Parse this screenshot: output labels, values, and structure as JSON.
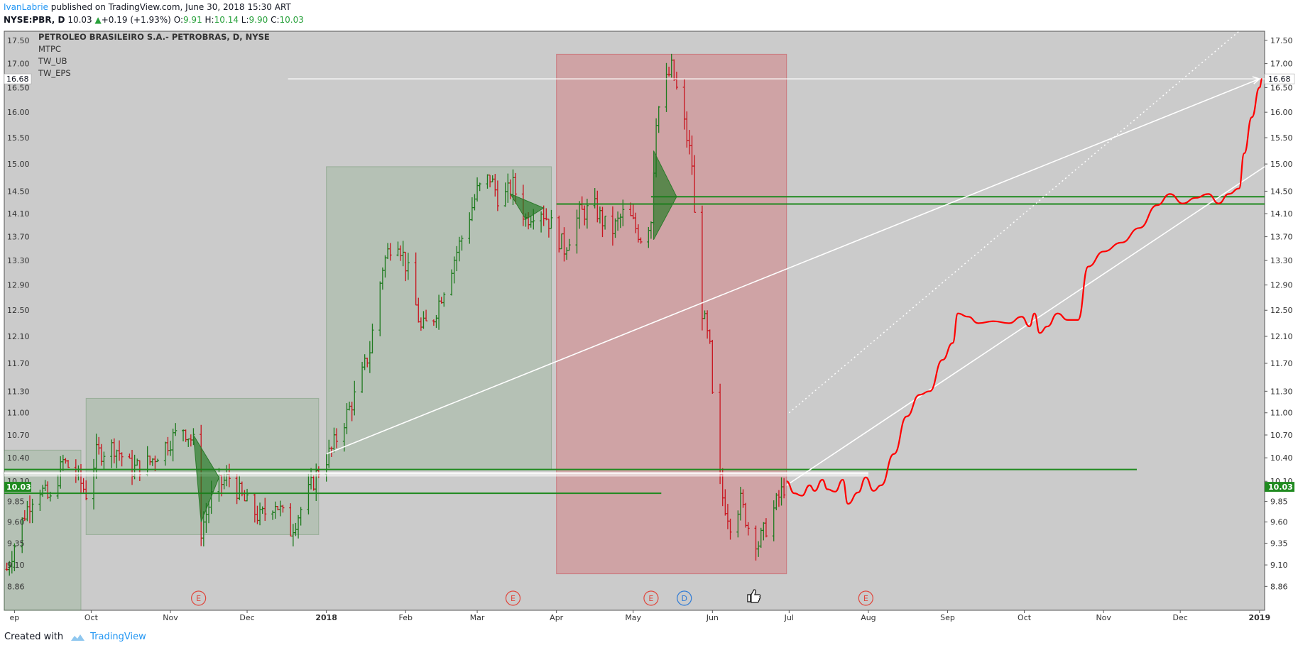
{
  "header": {
    "user": "IvanLabrie",
    "published": "published on TradingView.com, June 30, 2018 15:30 ART",
    "symbol": "NYSE:PBR, D",
    "last": "10.03",
    "change_arrow": "▲",
    "change": "+0.19 (+1.93%)",
    "o_label": "O:",
    "o": "9.91",
    "h_label": "H:",
    "h": "10.14",
    "l_label": "L:",
    "l": "9.90",
    "c_label": "C:",
    "c": "10.03"
  },
  "legend": {
    "title": "PETROLEO BRASILEIRO S.A.- PETROBRAS, D, NYSE",
    "studies": [
      "MTPC",
      "TW_UB",
      "TW_EPS"
    ]
  },
  "price_tags": {
    "target": "16.68",
    "current": "10.03"
  },
  "footer": {
    "created_with": "Created with",
    "brand": "TradingView"
  },
  "colors": {
    "background": "#cbcbcb",
    "up_bar": "#1e7a1e",
    "down_bar": "#c8141e",
    "projection": "#ff0000",
    "green_level": "#1f8a1f",
    "events": "#e0463c",
    "dividend": "#2e7bd6",
    "accent": "#2196f3"
  },
  "chart_data": {
    "type": "ohlc-bars",
    "ylim": [
      8.6,
      17.7
    ],
    "xlim": [
      "2017-08-28",
      "2019-01-03"
    ],
    "y_ticks": [
      "17.50",
      "17.00",
      "16.50",
      "16.00",
      "15.50",
      "15.00",
      "14.50",
      "14.10",
      "13.70",
      "13.30",
      "12.90",
      "12.50",
      "12.10",
      "11.70",
      "11.30",
      "11.00",
      "10.70",
      "10.40",
      "10.10",
      "9.85",
      "9.60",
      "9.35",
      "9.10",
      "8.86"
    ],
    "x_ticks": [
      {
        "date": "2017-09-01",
        "label": "ep"
      },
      {
        "date": "2017-10-01",
        "label": "Oct"
      },
      {
        "date": "2017-11-01",
        "label": "Nov"
      },
      {
        "date": "2017-12-01",
        "label": "Dec"
      },
      {
        "date": "2018-01-01",
        "label": "2018"
      },
      {
        "date": "2018-02-01",
        "label": "Feb"
      },
      {
        "date": "2018-03-01",
        "label": "Mar"
      },
      {
        "date": "2018-04-01",
        "label": "Apr"
      },
      {
        "date": "2018-05-01",
        "label": "May"
      },
      {
        "date": "2018-06-01",
        "label": "Jun"
      },
      {
        "date": "2018-07-01",
        "label": "Jul"
      },
      {
        "date": "2018-08-01",
        "label": "Aug"
      },
      {
        "date": "2018-09-01",
        "label": "Sep"
      },
      {
        "date": "2018-10-01",
        "label": "Oct"
      },
      {
        "date": "2018-11-01",
        "label": "Nov"
      },
      {
        "date": "2018-12-01",
        "label": "Dec"
      },
      {
        "date": "2019-01-01",
        "label": "2019"
      }
    ],
    "price_path": [
      [
        "2017-08-29",
        9.05
      ],
      [
        "2017-09-05",
        9.7
      ],
      [
        "2017-09-10",
        10.05
      ],
      [
        "2017-09-15",
        9.85
      ],
      [
        "2017-09-20",
        10.35
      ],
      [
        "2017-09-25",
        10.2
      ],
      [
        "2017-09-29",
        9.95
      ],
      [
        "2017-10-03",
        10.45
      ],
      [
        "2017-10-10",
        10.55
      ],
      [
        "2017-10-17",
        10.25
      ],
      [
        "2017-10-24",
        10.35
      ],
      [
        "2017-10-31",
        10.6
      ],
      [
        "2017-11-06",
        10.8
      ],
      [
        "2017-11-10",
        10.6
      ],
      [
        "2017-11-13",
        9.5
      ],
      [
        "2017-11-18",
        10.0
      ],
      [
        "2017-11-24",
        10.15
      ],
      [
        "2017-11-30",
        9.85
      ],
      [
        "2017-12-06",
        9.65
      ],
      [
        "2017-12-12",
        9.85
      ],
      [
        "2017-12-18",
        9.5
      ],
      [
        "2017-12-22",
        9.75
      ],
      [
        "2017-12-29",
        10.25
      ],
      [
        "2018-01-03",
        10.5
      ],
      [
        "2018-01-08",
        10.9
      ],
      [
        "2018-01-13",
        11.3
      ],
      [
        "2018-01-18",
        11.9
      ],
      [
        "2018-01-23",
        13.2
      ],
      [
        "2018-01-28",
        13.8
      ],
      [
        "2018-02-02",
        13.1
      ],
      [
        "2018-02-07",
        12.2
      ],
      [
        "2018-02-12",
        12.4
      ],
      [
        "2018-02-18",
        13.1
      ],
      [
        "2018-02-24",
        13.8
      ],
      [
        "2018-03-01",
        14.5
      ],
      [
        "2018-03-06",
        14.75
      ],
      [
        "2018-03-10",
        14.3
      ],
      [
        "2018-03-15",
        14.6
      ],
      [
        "2018-03-20",
        14.0
      ],
      [
        "2018-03-25",
        14.25
      ],
      [
        "2018-03-30",
        13.9
      ],
      [
        "2018-04-04",
        13.5
      ],
      [
        "2018-04-10",
        14.1
      ],
      [
        "2018-04-16",
        14.2
      ],
      [
        "2018-04-22",
        13.75
      ],
      [
        "2018-04-28",
        14.15
      ],
      [
        "2018-05-04",
        13.7
      ],
      [
        "2018-05-08",
        14.0
      ],
      [
        "2018-05-10",
        15.9
      ],
      [
        "2018-05-13",
        16.5
      ],
      [
        "2018-05-16",
        16.9
      ],
      [
        "2018-05-20",
        16.0
      ],
      [
        "2018-05-24",
        15.0
      ],
      [
        "2018-05-26",
        13.1
      ],
      [
        "2018-05-28",
        12.5
      ],
      [
        "2018-05-31",
        11.9
      ],
      [
        "2018-06-02",
        10.5
      ],
      [
        "2018-06-05",
        9.9
      ],
      [
        "2018-06-08",
        9.6
      ],
      [
        "2018-06-12",
        9.85
      ],
      [
        "2018-06-15",
        9.55
      ],
      [
        "2018-06-19",
        9.35
      ],
      [
        "2018-06-23",
        9.6
      ],
      [
        "2018-06-27",
        9.9
      ],
      [
        "2018-06-29",
        10.03
      ]
    ],
    "projection_path": [
      [
        "2018-06-30",
        10.1
      ],
      [
        "2018-07-03",
        9.95
      ],
      [
        "2018-07-06",
        9.92
      ],
      [
        "2018-07-09",
        10.05
      ],
      [
        "2018-07-11",
        9.98
      ],
      [
        "2018-07-14",
        10.12
      ],
      [
        "2018-07-16",
        10.0
      ],
      [
        "2018-07-19",
        9.97
      ],
      [
        "2018-07-22",
        10.12
      ],
      [
        "2018-07-24",
        9.82
      ],
      [
        "2018-07-28",
        9.96
      ],
      [
        "2018-07-31",
        10.15
      ],
      [
        "2018-08-03",
        9.98
      ],
      [
        "2018-08-06",
        10.05
      ],
      [
        "2018-08-11",
        10.45
      ],
      [
        "2018-08-16",
        10.95
      ],
      [
        "2018-08-21",
        11.25
      ],
      [
        "2018-08-25",
        11.3
      ],
      [
        "2018-08-30",
        11.75
      ],
      [
        "2018-09-03",
        12.0
      ],
      [
        "2018-09-05",
        12.45
      ],
      [
        "2018-09-09",
        12.4
      ],
      [
        "2018-09-13",
        12.3
      ],
      [
        "2018-09-19",
        12.33
      ],
      [
        "2018-09-25",
        12.3
      ],
      [
        "2018-09-30",
        12.4
      ],
      [
        "2018-10-03",
        12.25
      ],
      [
        "2018-10-05",
        12.45
      ],
      [
        "2018-10-07",
        12.15
      ],
      [
        "2018-10-10",
        12.25
      ],
      [
        "2018-10-14",
        12.45
      ],
      [
        "2018-10-18",
        12.35
      ],
      [
        "2018-10-22",
        12.35
      ],
      [
        "2018-10-26",
        13.2
      ],
      [
        "2018-11-01",
        13.45
      ],
      [
        "2018-11-08",
        13.6
      ],
      [
        "2018-11-15",
        13.85
      ],
      [
        "2018-11-22",
        14.25
      ],
      [
        "2018-11-27",
        14.45
      ],
      [
        "2018-12-02",
        14.28
      ],
      [
        "2018-12-07",
        14.38
      ],
      [
        "2018-12-12",
        14.45
      ],
      [
        "2018-12-16",
        14.28
      ],
      [
        "2018-12-20",
        14.45
      ],
      [
        "2018-12-24",
        14.55
      ],
      [
        "2018-12-26",
        15.2
      ],
      [
        "2018-12-29",
        15.9
      ],
      [
        "2019-01-01",
        16.5
      ],
      [
        "2019-01-02",
        16.68
      ]
    ],
    "range_boxes": [
      {
        "from": "2017-08-28",
        "to": "2017-09-27",
        "low": 8.6,
        "high": 10.5,
        "kind": "accumulation"
      },
      {
        "from": "2017-09-29",
        "to": "2017-12-29",
        "low": 9.45,
        "high": 11.2,
        "kind": "accumulation"
      },
      {
        "from": "2018-01-01",
        "to": "2018-03-30",
        "low": 10.25,
        "high": 14.95,
        "kind": "accumulation"
      },
      {
        "from": "2018-04-01",
        "to": "2018-06-30",
        "low": 9.0,
        "high": 17.2,
        "kind": "distribution"
      }
    ],
    "horizontal_levels": [
      {
        "from": "2017-08-28",
        "to": "2018-05-12",
        "price": 9.95,
        "color": "green"
      },
      {
        "from": "2017-08-28",
        "to": "2018-11-14",
        "price": 10.25,
        "color": "green"
      },
      {
        "from": "2017-08-28",
        "to": "2018-08-01",
        "price": 10.2,
        "color": "white"
      },
      {
        "from": "2018-05-08",
        "to": "2019-01-03",
        "price": 14.4,
        "color": "green"
      },
      {
        "from": "2018-04-01",
        "to": "2019-01-03",
        "price": 14.27,
        "color": "green"
      },
      {
        "from": "2017-12-17",
        "to": "2019-01-03",
        "price": 16.68,
        "color": "white"
      }
    ],
    "trend_lines": [
      {
        "from": [
          "2018-01-01",
          10.45
        ],
        "to": [
          "2019-01-01",
          16.68
        ],
        "style": "solid",
        "arrow": true
      },
      {
        "from": [
          "2018-06-30",
          10.05
        ],
        "to": [
          "2019-01-03",
          14.95
        ],
        "style": "solid"
      },
      {
        "from": [
          "2018-07-01",
          11.0
        ],
        "to": [
          "2018-12-24",
          17.7
        ],
        "style": "dotted"
      }
    ],
    "triangles": [
      {
        "points": [
          [
            "2017-11-10",
            10.7
          ],
          [
            "2017-11-13",
            9.6
          ],
          [
            "2017-11-20",
            10.15
          ]
        ]
      },
      {
        "points": [
          [
            "2018-03-14",
            14.45
          ],
          [
            "2018-03-20",
            14.0
          ],
          [
            "2018-03-27",
            14.2
          ]
        ]
      },
      {
        "points": [
          [
            "2018-05-09",
            15.25
          ],
          [
            "2018-05-09",
            13.65
          ],
          [
            "2018-05-18",
            14.4
          ]
        ]
      }
    ],
    "events": [
      {
        "date": "2017-11-12",
        "label": "E"
      },
      {
        "date": "2018-03-15",
        "label": "E"
      },
      {
        "date": "2018-05-08",
        "label": "E"
      },
      {
        "date": "2018-05-21",
        "label": "D"
      },
      {
        "date": "2018-07-31",
        "label": "E"
      }
    ],
    "annotation_date": "2018-06-17"
  }
}
